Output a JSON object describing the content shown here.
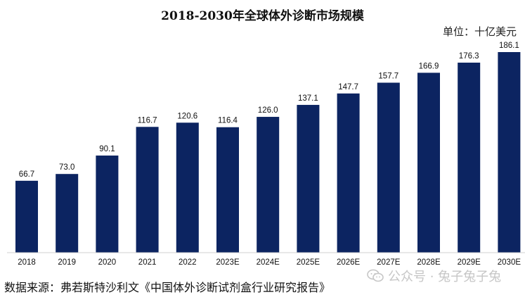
{
  "chart_data": {
    "type": "bar",
    "title": "2018-2030年全球体外诊断市场规模",
    "unit": "单位：十亿美元",
    "categories": [
      "2018",
      "2019",
      "2020",
      "2021",
      "2022",
      "2023E",
      "2024E",
      "2025E",
      "2026E",
      "2027E",
      "2028E",
      "2029E",
      "2030E"
    ],
    "values": [
      66.7,
      73.0,
      90.1,
      116.7,
      120.6,
      116.4,
      126.0,
      137.1,
      147.7,
      157.7,
      166.9,
      176.3,
      186.1
    ],
    "value_labels": [
      "66.7",
      "73.0",
      "90.1",
      "116.7",
      "120.6",
      "116.4",
      "126.0",
      "137.1",
      "147.7",
      "157.7",
      "166.9",
      "176.3",
      "186.1"
    ],
    "ylim": [
      0,
      186.1
    ],
    "grid": false,
    "legend": "none",
    "bar_color": "#0c2461"
  },
  "footer": {
    "source": "数据来源：弗若斯特沙利文《中国体外诊断试剂盒行业研究报告》",
    "watermark": "公众号 · 兔子兔子兔",
    "watermark_icon": "wechat-icon"
  }
}
